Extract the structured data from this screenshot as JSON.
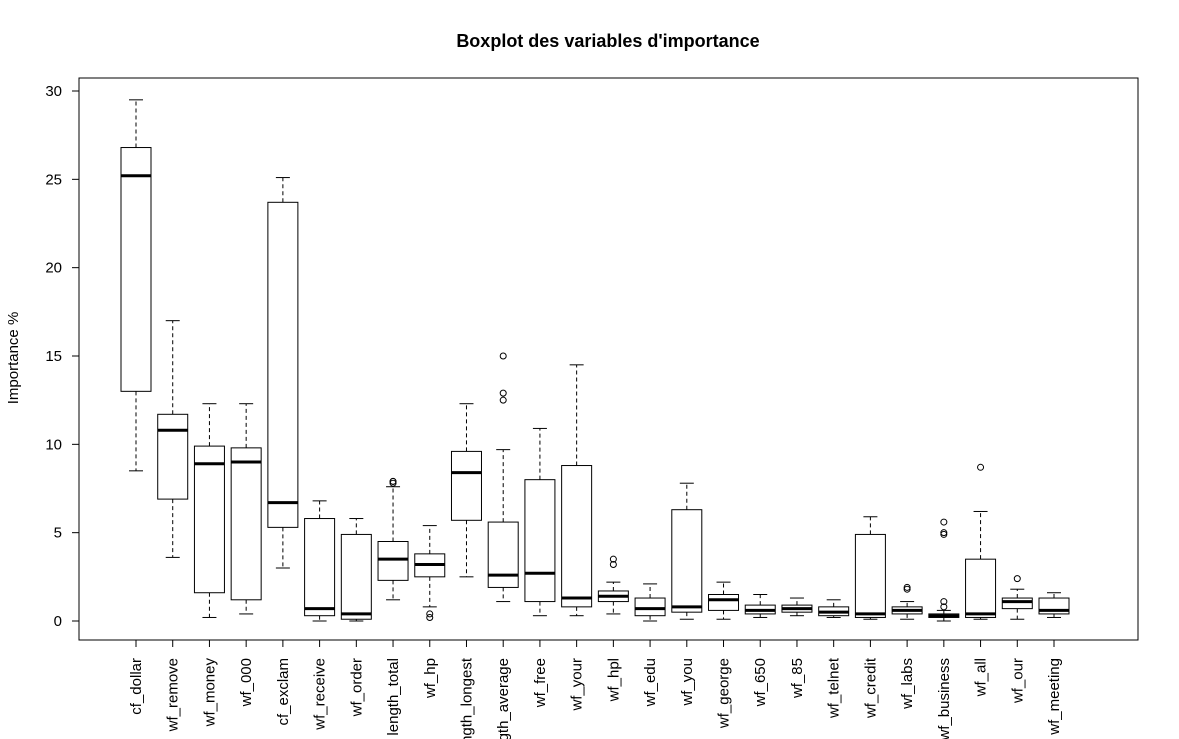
{
  "chart_data": {
    "type": "boxplot",
    "title": "Boxplot des variables d'importance",
    "ylabel": "Importance %",
    "xlabel": "",
    "ylim": [
      -1.2,
      30.8
    ],
    "yticks": [
      0,
      5,
      10,
      15,
      20,
      25,
      30
    ],
    "categories": [
      "cf_dollar",
      "wf_remove",
      "wf_money",
      "wf_000",
      "cf_exclam",
      "wf_receive",
      "wf_order",
      "length_total",
      "wf_hp",
      "length_longest",
      "length_average",
      "wf_free",
      "wf_your",
      "wf_hpl",
      "wf_edu",
      "wf_you",
      "wf_george",
      "wf_650",
      "wf_85",
      "wf_telnet",
      "wf_credit",
      "wf_labs",
      "wf_business",
      "wf_all",
      "wf_our",
      "wf_meeting"
    ],
    "boxes": [
      {
        "whisker_low": 8.5,
        "q1": 13.0,
        "median": 25.2,
        "q3": 26.8,
        "whisker_high": 29.5,
        "outliers": []
      },
      {
        "whisker_low": 3.6,
        "q1": 6.9,
        "median": 10.8,
        "q3": 11.7,
        "whisker_high": 17.0,
        "outliers": []
      },
      {
        "whisker_low": 0.2,
        "q1": 1.6,
        "median": 8.9,
        "q3": 9.9,
        "whisker_high": 12.3,
        "outliers": []
      },
      {
        "whisker_low": 0.4,
        "q1": 1.2,
        "median": 9.0,
        "q3": 9.8,
        "whisker_high": 12.3,
        "outliers": []
      },
      {
        "whisker_low": 3.0,
        "q1": 5.3,
        "median": 6.7,
        "q3": 23.7,
        "whisker_high": 25.1,
        "outliers": []
      },
      {
        "whisker_low": 0.0,
        "q1": 0.3,
        "median": 0.7,
        "q3": 5.8,
        "whisker_high": 6.8,
        "outliers": []
      },
      {
        "whisker_low": 0.0,
        "q1": 0.1,
        "median": 0.4,
        "q3": 4.9,
        "whisker_high": 5.8,
        "outliers": []
      },
      {
        "whisker_low": 1.2,
        "q1": 2.3,
        "median": 3.5,
        "q3": 4.5,
        "whisker_high": 7.6,
        "outliers": [
          7.8,
          7.9,
          7.9
        ]
      },
      {
        "whisker_low": 0.8,
        "q1": 2.5,
        "median": 3.2,
        "q3": 3.8,
        "whisker_high": 5.4,
        "outliers": [
          0.2,
          0.4
        ]
      },
      {
        "whisker_low": 2.5,
        "q1": 5.7,
        "median": 8.4,
        "q3": 9.6,
        "whisker_high": 12.3,
        "outliers": []
      },
      {
        "whisker_low": 1.1,
        "q1": 1.9,
        "median": 2.6,
        "q3": 5.6,
        "whisker_high": 9.7,
        "outliers": [
          12.5,
          12.9,
          15.0
        ]
      },
      {
        "whisker_low": 0.3,
        "q1": 1.1,
        "median": 2.7,
        "q3": 8.0,
        "whisker_high": 10.9,
        "outliers": []
      },
      {
        "whisker_low": 0.3,
        "q1": 0.8,
        "median": 1.3,
        "q3": 8.8,
        "whisker_high": 14.5,
        "outliers": []
      },
      {
        "whisker_low": 0.4,
        "q1": 1.1,
        "median": 1.4,
        "q3": 1.7,
        "whisker_high": 2.2,
        "outliers": [
          3.2,
          3.5
        ]
      },
      {
        "whisker_low": 0.0,
        "q1": 0.3,
        "median": 0.7,
        "q3": 1.3,
        "whisker_high": 2.1,
        "outliers": []
      },
      {
        "whisker_low": 0.1,
        "q1": 0.5,
        "median": 0.8,
        "q3": 6.3,
        "whisker_high": 7.8,
        "outliers": []
      },
      {
        "whisker_low": 0.1,
        "q1": 0.6,
        "median": 1.2,
        "q3": 1.5,
        "whisker_high": 2.2,
        "outliers": []
      },
      {
        "whisker_low": 0.2,
        "q1": 0.4,
        "median": 0.6,
        "q3": 0.9,
        "whisker_high": 1.5,
        "outliers": []
      },
      {
        "whisker_low": 0.3,
        "q1": 0.5,
        "median": 0.7,
        "q3": 0.9,
        "whisker_high": 1.3,
        "outliers": []
      },
      {
        "whisker_low": 0.2,
        "q1": 0.3,
        "median": 0.5,
        "q3": 0.8,
        "whisker_high": 1.2,
        "outliers": []
      },
      {
        "whisker_low": 0.1,
        "q1": 0.2,
        "median": 0.4,
        "q3": 4.9,
        "whisker_high": 5.9,
        "outliers": []
      },
      {
        "whisker_low": 0.1,
        "q1": 0.4,
        "median": 0.6,
        "q3": 0.8,
        "whisker_high": 1.1,
        "outliers": [
          1.8,
          1.9
        ]
      },
      {
        "whisker_low": 0.0,
        "q1": 0.2,
        "median": 0.3,
        "q3": 0.4,
        "whisker_high": 0.6,
        "outliers": [
          0.8,
          1.1,
          4.9,
          5.0,
          5.6
        ]
      },
      {
        "whisker_low": 0.1,
        "q1": 0.2,
        "median": 0.4,
        "q3": 3.5,
        "whisker_high": 6.2,
        "outliers": [
          8.7
        ]
      },
      {
        "whisker_low": 0.1,
        "q1": 0.7,
        "median": 1.1,
        "q3": 1.3,
        "whisker_high": 1.8,
        "outliers": [
          2.4
        ]
      },
      {
        "whisker_low": 0.2,
        "q1": 0.4,
        "median": 0.6,
        "q3": 1.3,
        "whisker_high": 1.6,
        "outliers": []
      }
    ],
    "grid": false,
    "legend": "none"
  }
}
